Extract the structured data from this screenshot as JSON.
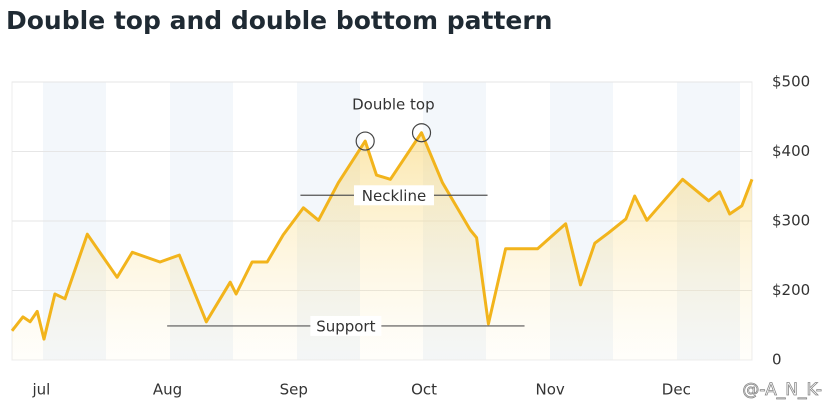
{
  "chart_data": {
    "type": "line",
    "title": "Double top and double bottom pattern",
    "color": "#f2b41c",
    "x": [
      0,
      2.6,
      4.3,
      6,
      7.6,
      10.2,
      12.6,
      17.9,
      25,
      28.6,
      35.2,
      39.8,
      46.2,
      51.9,
      53.3,
      57.1,
      60.7,
      64.5,
      69.3,
      72.9,
      77.6,
      84,
      86.7,
      90,
      97.4,
      102.4,
      109,
      110.5,
      113.3,
      117.4,
      125,
      131.7,
      135.2,
      138.6,
      141.9,
      146,
      148.1,
      151,
      159.5,
      165.7,
      168.3,
      170.7,
      173.6,
      176
    ],
    "values": [
      142,
      162,
      155,
      170,
      130,
      195,
      188,
      281,
      219,
      255,
      241,
      251,
      155,
      212,
      195,
      241,
      241,
      280,
      319,
      301,
      355,
      415,
      366,
      360,
      427,
      355,
      287,
      276,
      152,
      260,
      260,
      296,
      208,
      268,
      283,
      303,
      336,
      301,
      360,
      329,
      342,
      310,
      322,
      360
    ],
    "xlim": [
      0,
      176
    ],
    "xticks": [
      {
        "value": 7,
        "label": "jul"
      },
      {
        "value": 37,
        "label": "Aug"
      },
      {
        "value": 67,
        "label": "Sep"
      },
      {
        "value": 98,
        "label": "Oct"
      },
      {
        "value": 128,
        "label": "Nov"
      },
      {
        "value": 158,
        "label": "Dec"
      }
    ],
    "ylim": [
      100,
      500
    ],
    "yticks": [
      {
        "value": 200,
        "label": "$200"
      },
      {
        "value": 300,
        "label": "$300"
      },
      {
        "value": 400,
        "label": "$400"
      },
      {
        "value": 500,
        "label": "$500"
      }
    ],
    "y_baseline_label": "0",
    "grid": true,
    "double_top": {
      "label": "Double top",
      "peaks": [
        21,
        24
      ]
    },
    "neckline": {
      "label": "Neckline",
      "value": 337,
      "x": [
        68.6,
        113.1
      ]
    },
    "support": {
      "label": "Support",
      "value": 149,
      "x": [
        36.9,
        121.9
      ]
    },
    "watermark": "@-A_N_K-"
  }
}
